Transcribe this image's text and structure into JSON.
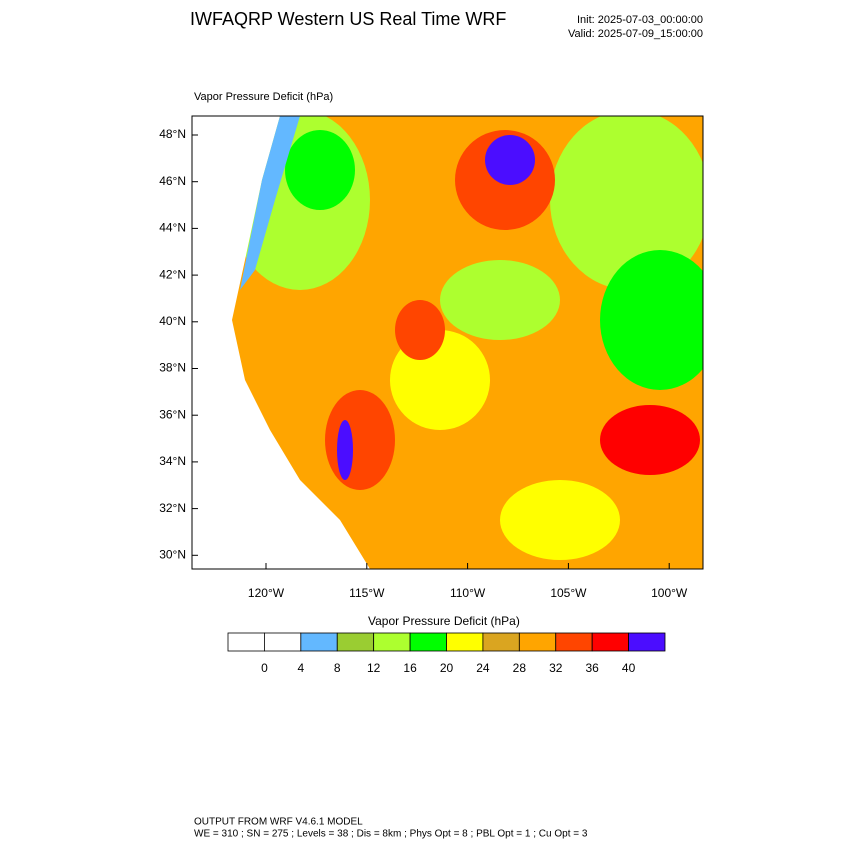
{
  "header": {
    "title": "IWFAQRP Western US Real Time WRF",
    "init": "Init: 2025-07-03_00:00:00",
    "valid": "Valid: 2025-07-09_15:00:00"
  },
  "map": {
    "label": "Vapor Pressure Deficit   (hPa)",
    "lat_labels": [
      "48°N",
      "46°N",
      "44°N",
      "42°N",
      "40°N",
      "38°N",
      "36°N",
      "34°N",
      "32°N",
      "30°N"
    ],
    "lon_labels": [
      "120°W",
      "115°W",
      "110°W",
      "105°W",
      "100°W"
    ]
  },
  "colorbar": {
    "title": "Vapor Pressure Deficit  (hPa)",
    "colors": [
      "#ffffff",
      "#ffffff",
      "#63b8ff",
      "#9acd32",
      "#adff2f",
      "#00ff00",
      "#ffff00",
      "#daa520",
      "#ffa500",
      "#ff4500",
      "#ff0000",
      "#4b0dff"
    ],
    "labels": [
      "0",
      "4",
      "8",
      "12",
      "16",
      "20",
      "24",
      "28",
      "32",
      "36",
      "40"
    ]
  },
  "footer": {
    "line1": "OUTPUT FROM WRF V4.6.1 MODEL",
    "line2": "WE = 310 ; SN = 275 ; Levels = 38 ; Dis = 8km ; Phys Opt = 8 ; PBL Opt = 1 ; Cu Opt = 3"
  }
}
